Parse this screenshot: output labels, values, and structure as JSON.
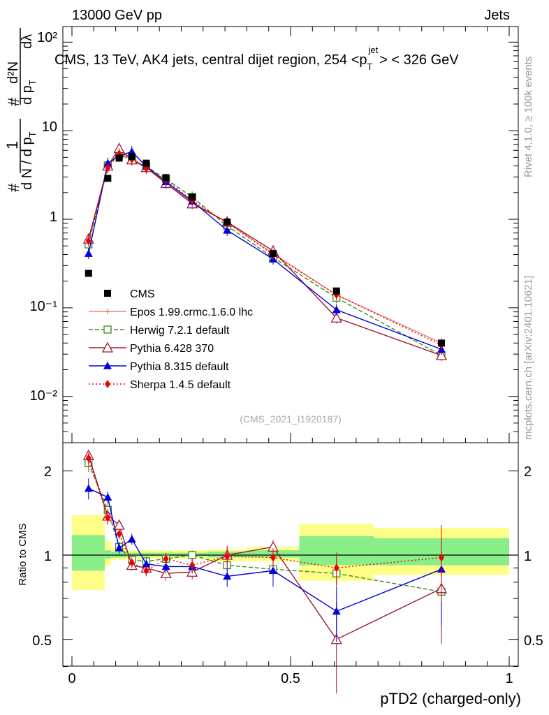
{
  "header": {
    "left": "13000 GeV pp",
    "right": "Jets",
    "title": "CMS, 13 TeV, AK4 jets, central dijet region, 254 <p",
    "title_sub": "T",
    "title_sup": "jet",
    "title_end": "> < 326 GeV",
    "side_top": "Rivet 4.1.0, ≥ 100k events",
    "side_bottom": "mcplots.cern.ch [arXiv:2401.10621]",
    "analysis_id": "(CMS_2021_I1920187)"
  },
  "y_label": {
    "hash1": "#",
    "one": "1",
    "dn": "d N / d p",
    "dn_sub": "T",
    "hash2": "#",
    "d2n": "d²N",
    "dpt": "d p",
    "dpt_sub": "T",
    "dlambda": "dλ"
  },
  "y_ticks": [
    "10²",
    "10",
    "1",
    "10⁻¹",
    "10⁻²"
  ],
  "ratio_ylabel": "Ratio to CMS",
  "ratio_ticks": [
    "2",
    "1",
    "0.5"
  ],
  "x_ticks": [
    "0",
    "0.5",
    "1"
  ],
  "x_label": "pTD2 (charged-only)",
  "legend": [
    {
      "label": "CMS",
      "color": "#000000"
    },
    {
      "label": "Epos 1.99.crmc.1.6.0 lhc",
      "color": "#f08080"
    },
    {
      "label": "Herwig 7.2.1 default",
      "color": "#3a8a1f"
    },
    {
      "label": "Pythia 6.428 370",
      "color": "#9b1b30"
    },
    {
      "label": "Pythia 8.315 default",
      "color": "#0000dd"
    },
    {
      "label": "Sherpa 1.4.5 default",
      "color": "#ee0000"
    }
  ],
  "chart_data": {
    "type": "line",
    "x_scale": "linear",
    "y_scale": "log",
    "xlim": [
      0,
      1
    ],
    "ylim": [
      0.003,
      150
    ],
    "ratio_ylim": [
      0.32,
      2.32
    ],
    "x": [
      0.038,
      0.082,
      0.108,
      0.137,
      0.17,
      0.215,
      0.275,
      0.355,
      0.46,
      0.605,
      0.845
    ],
    "data": {
      "name": "CMS",
      "y": [
        0.245,
        2.9,
        4.9,
        5.1,
        4.3,
        2.95,
        1.78,
        0.93,
        0.41,
        0.155,
        0.04
      ],
      "bins": [
        0.0,
        0.075,
        0.09,
        0.125,
        0.15,
        0.19,
        0.24,
        0.31,
        0.4,
        0.52,
        0.69,
        1.0
      ],
      "band_stat": [
        [
          0.88,
          1.18
        ],
        [
          0.97,
          1.04
        ],
        [
          0.98,
          1.03
        ],
        [
          0.99,
          1.02
        ],
        [
          0.99,
          1.02
        ],
        [
          0.99,
          1.02
        ],
        [
          0.99,
          1.02
        ],
        [
          0.98,
          1.03
        ],
        [
          0.98,
          1.04
        ],
        [
          0.92,
          1.17
        ],
        [
          0.92,
          1.15
        ]
      ],
      "band_tot": [
        [
          0.75,
          1.39
        ],
        [
          0.92,
          1.12
        ],
        [
          0.96,
          1.06
        ],
        [
          0.97,
          1.04
        ],
        [
          0.97,
          1.04
        ],
        [
          0.97,
          1.04
        ],
        [
          0.97,
          1.04
        ],
        [
          0.95,
          1.05
        ],
        [
          0.95,
          1.07
        ],
        [
          0.81,
          1.29
        ],
        [
          0.85,
          1.25
        ]
      ]
    },
    "series": [
      {
        "name": "Epos 1.99.crmc.1.6.0 lhc",
        "marker": "cross",
        "dash": "",
        "color": "#f08080",
        "y": [
          0.6,
          4.0,
          5.6,
          4.95,
          3.8,
          2.55,
          1.55,
          0.92,
          0.41,
          0.14,
          0.04
        ]
      },
      {
        "name": "Herwig 7.2.1 default",
        "marker": "square-open",
        "dash": "6,3",
        "color": "#3a8a1f",
        "y": [
          0.52,
          4.05,
          5.4,
          4.65,
          3.95,
          2.85,
          1.78,
          0.84,
          0.37,
          0.13,
          0.029
        ]
      },
      {
        "name": "Pythia 6.428 370",
        "marker": "triangle-open",
        "dash": "",
        "color": "#9b1b30",
        "y": [
          0.6,
          4.0,
          6.3,
          4.7,
          3.85,
          2.55,
          1.5,
          0.93,
          0.44,
          0.077,
          0.029
        ]
      },
      {
        "name": "Pythia 8.315 default",
        "marker": "triangle",
        "dash": "",
        "color": "#0000dd",
        "y": [
          0.41,
          4.3,
          5.2,
          5.8,
          3.95,
          2.65,
          1.6,
          0.75,
          0.355,
          0.095,
          0.034
        ]
      },
      {
        "name": "Sherpa 1.4.5 default",
        "marker": "diamond",
        "dash": "2,3",
        "color": "#ee0000",
        "y": [
          0.57,
          3.8,
          5.5,
          4.75,
          3.75,
          2.8,
          1.63,
          0.91,
          0.4,
          0.14,
          0.038
        ]
      }
    ],
    "ratio": [
      {
        "name": "Herwig 7.2.1 default",
        "y": [
          2.13,
          1.45,
          1.07,
          0.96,
          0.95,
          0.97,
          1.0,
          0.92,
          0.89,
          0.86,
          0.74
        ],
        "err": [
          0.15,
          0.08,
          0.04,
          0.04,
          0.04,
          0.04,
          0.04,
          0.05,
          0.06,
          0.09,
          0.26
        ]
      },
      {
        "name": "Pythia 6.428 370",
        "y": [
          2.27,
          1.38,
          1.28,
          0.92,
          0.9,
          0.86,
          0.87,
          1.0,
          1.07,
          0.5,
          0.76
        ],
        "err": [
          0.15,
          0.08,
          0.05,
          0.04,
          0.04,
          0.05,
          0.05,
          0.08,
          0.06,
          0.18,
          0.27
        ]
      },
      {
        "name": "Pythia 8.315 default",
        "y": [
          1.73,
          1.61,
          1.06,
          1.14,
          0.93,
          0.91,
          0.91,
          0.84,
          0.88,
          0.63,
          0.89
        ],
        "err": [
          0.15,
          0.08,
          0.05,
          0.05,
          0.04,
          0.05,
          0.05,
          0.07,
          0.11,
          0.14,
          0.33
        ]
      },
      {
        "name": "Sherpa 1.4.5 default",
        "y": [
          2.22,
          1.36,
          1.19,
          0.94,
          0.88,
          0.97,
          0.92,
          0.99,
          0.98,
          0.9,
          0.98
        ],
        "err": [
          0.15,
          0.08,
          0.05,
          0.04,
          0.04,
          0.05,
          0.06,
          0.08,
          0.08,
          0.12,
          0.3
        ]
      }
    ]
  }
}
